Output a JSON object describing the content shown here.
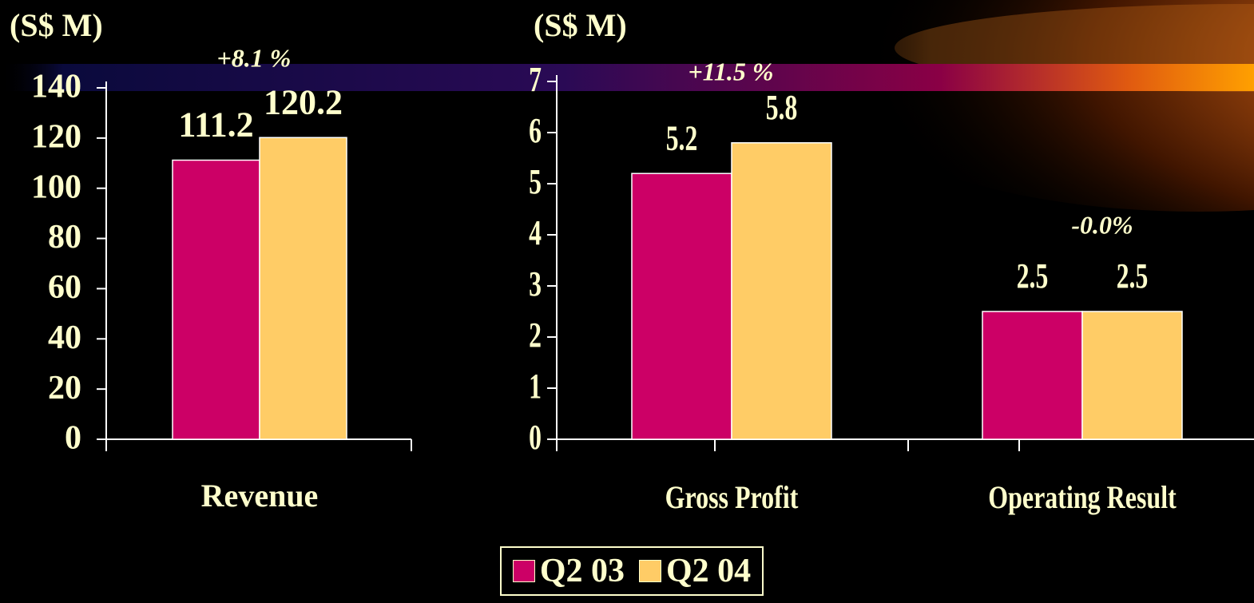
{
  "colors": {
    "background": "#000000",
    "text": "#FFFFCC",
    "axis": "#FFFFFF",
    "q2_03": "#CC0066",
    "q2_04": "#FFCC66"
  },
  "decoration": {
    "banner": "purple-to-orange gradient band",
    "swoosh": "orange radial swoosh top-right"
  },
  "chart_data": [
    {
      "type": "bar",
      "ylabel": "(S$ M)",
      "ylim": [
        0,
        140
      ],
      "yticks": [
        "0",
        "20",
        "40",
        "60",
        "80",
        "100",
        "120",
        "140"
      ],
      "categories": [
        "Revenue"
      ],
      "series": [
        {
          "name": "Q2 03",
          "values": [
            111.2
          ],
          "labels": [
            "111.2"
          ]
        },
        {
          "name": "Q2 04",
          "values": [
            120.2
          ],
          "labels": [
            "120.2"
          ]
        }
      ],
      "annotations": [
        "+8.1 %"
      ],
      "grid": false
    },
    {
      "type": "bar",
      "ylabel": "(S$ M)",
      "ylim": [
        0,
        7
      ],
      "yticks": [
        "0",
        "1",
        "2",
        "3",
        "4",
        "5",
        "6",
        "7"
      ],
      "categories": [
        "Gross Profit",
        "Operating Result"
      ],
      "series": [
        {
          "name": "Q2 03",
          "values": [
            5.2,
            2.5
          ],
          "labels": [
            "5.2",
            "2.5"
          ]
        },
        {
          "name": "Q2 04",
          "values": [
            5.8,
            2.5
          ],
          "labels": [
            "5.8",
            "2.5"
          ]
        }
      ],
      "annotations": [
        "+11.5 %",
        "-0.0%"
      ],
      "grid": false
    }
  ],
  "legend": {
    "items": [
      {
        "label": "Q2 03",
        "color": "#CC0066"
      },
      {
        "label": "Q2 04",
        "color": "#FFCC66"
      }
    ],
    "placement": "bottom-center"
  }
}
